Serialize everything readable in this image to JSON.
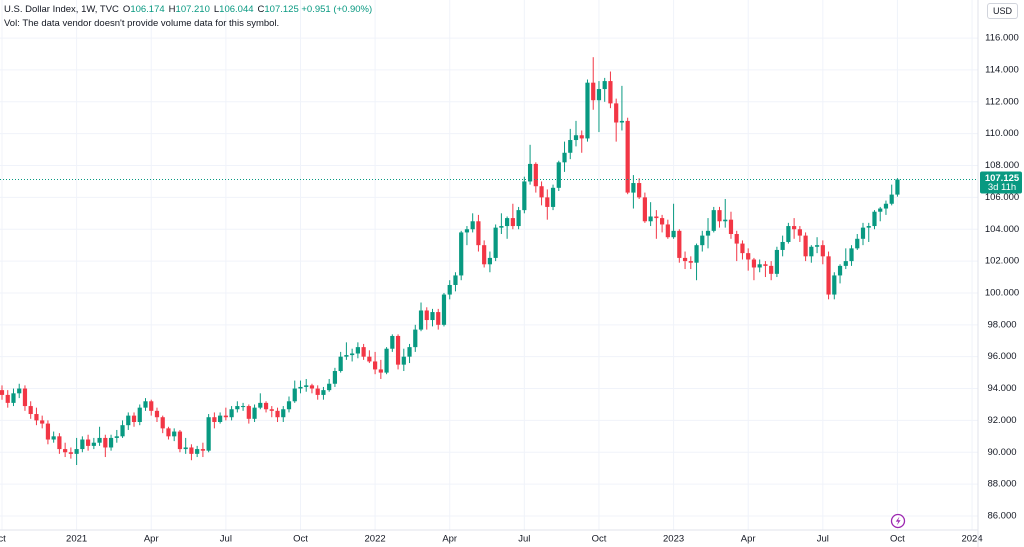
{
  "chart_data": {
    "type": "candlestick",
    "header": {
      "title": "U.S. Dollar Index, 1W, TVC",
      "fields": [
        {
          "key": "O",
          "label": "106.174"
        },
        {
          "key": "H",
          "label": "107.210"
        },
        {
          "key": "L",
          "label": "106.044"
        },
        {
          "key": "C",
          "label": "107.125"
        }
      ],
      "change": "+0.951 (+0.90%)",
      "volume_note": "Vol: The data vendor doesn't provide volume data for this symbol."
    },
    "currency": "USD",
    "countdown": "3d 11h",
    "up_color": "#089981",
    "down_color": "#f23645",
    "grid": true,
    "ylim": [
      85.12,
      118.39
    ],
    "yticks": [
      {
        "value": 86,
        "label": "86.000"
      },
      {
        "value": 88,
        "label": "88.000"
      },
      {
        "value": 90,
        "label": "90.000"
      },
      {
        "value": 92,
        "label": "92.000"
      },
      {
        "value": 94,
        "label": "94.000"
      },
      {
        "value": 96,
        "label": "96.000"
      },
      {
        "value": 98,
        "label": "98.000"
      },
      {
        "value": 100,
        "label": "100.000"
      },
      {
        "value": 102,
        "label": "102.000"
      },
      {
        "value": 104,
        "label": "104.000"
      },
      {
        "value": 106,
        "label": "106.000"
      },
      {
        "value": 108,
        "label": "108.000"
      },
      {
        "value": 110,
        "label": "110.000"
      },
      {
        "value": 112,
        "label": "112.000"
      },
      {
        "value": 114,
        "label": "114.000"
      },
      {
        "value": 116,
        "label": "116.000"
      }
    ],
    "categories": [
      "ct",
      null,
      null,
      null,
      null,
      null,
      null,
      null,
      null,
      null,
      null,
      null,
      null,
      "2021",
      null,
      null,
      null,
      null,
      null,
      null,
      null,
      null,
      null,
      null,
      null,
      null,
      "Apr",
      null,
      null,
      null,
      null,
      null,
      null,
      null,
      null,
      null,
      null,
      null,
      null,
      "Jul",
      null,
      null,
      null,
      null,
      null,
      null,
      null,
      null,
      null,
      null,
      null,
      null,
      "Oct",
      null,
      null,
      null,
      null,
      null,
      null,
      null,
      null,
      null,
      null,
      null,
      null,
      "2022",
      null,
      null,
      null,
      null,
      null,
      null,
      null,
      null,
      null,
      null,
      null,
      null,
      "Apr",
      null,
      null,
      null,
      null,
      null,
      null,
      null,
      null,
      null,
      null,
      null,
      null,
      "Jul",
      null,
      null,
      null,
      null,
      null,
      null,
      null,
      null,
      null,
      null,
      null,
      null,
      "Oct",
      null,
      null,
      null,
      null,
      null,
      null,
      null,
      null,
      null,
      null,
      null,
      null,
      "2023",
      null,
      null,
      null,
      null,
      null,
      null,
      null,
      null,
      null,
      null,
      null,
      null,
      "Apr",
      null,
      null,
      null,
      null,
      null,
      null,
      null,
      null,
      null,
      null,
      null,
      null,
      "Jul",
      null,
      null,
      null,
      null,
      null,
      null,
      null,
      null,
      null,
      null,
      null,
      null,
      "Oct",
      null,
      null,
      null,
      null,
      null,
      null,
      null,
      null,
      null,
      null,
      null,
      null,
      "2024"
    ],
    "ohlc": [
      [
        93.9,
        94.2,
        93.3,
        93.6
      ],
      [
        93.6,
        93.9,
        92.8,
        93.1
      ],
      [
        93.1,
        94.0,
        92.9,
        93.7
      ],
      [
        93.7,
        94.3,
        93.4,
        94.0
      ],
      [
        94.0,
        94.2,
        92.6,
        92.9
      ],
      [
        92.9,
        93.2,
        92.1,
        92.4
      ],
      [
        92.4,
        92.8,
        91.7,
        92.0
      ],
      [
        92.0,
        92.3,
        91.5,
        91.8
      ],
      [
        91.8,
        92.0,
        90.5,
        90.8
      ],
      [
        90.8,
        91.3,
        90.6,
        91.0
      ],
      [
        91.0,
        91.2,
        89.9,
        90.2
      ],
      [
        90.2,
        90.6,
        89.7,
        90.0
      ],
      [
        90.0,
        90.3,
        89.6,
        89.9
      ],
      [
        89.9,
        90.9,
        89.2,
        90.2
      ],
      [
        90.2,
        91.0,
        90.0,
        90.8
      ],
      [
        90.8,
        91.1,
        90.1,
        90.4
      ],
      [
        90.4,
        90.9,
        90.2,
        90.6
      ],
      [
        90.6,
        91.6,
        90.4,
        90.9
      ],
      [
        90.9,
        91.1,
        89.7,
        90.3
      ],
      [
        90.3,
        91.1,
        90.1,
        90.9
      ],
      [
        90.9,
        91.4,
        90.6,
        91.0
      ],
      [
        91.0,
        92.0,
        90.9,
        91.7
      ],
      [
        91.7,
        92.5,
        91.4,
        92.3
      ],
      [
        92.3,
        92.5,
        91.6,
        91.9
      ],
      [
        91.9,
        93.0,
        91.7,
        92.8
      ],
      [
        92.8,
        93.4,
        92.6,
        93.2
      ],
      [
        93.2,
        93.3,
        92.3,
        92.6
      ],
      [
        92.6,
        92.8,
        91.9,
        92.2
      ],
      [
        92.2,
        92.3,
        91.2,
        91.5
      ],
      [
        91.5,
        91.6,
        90.8,
        91.0
      ],
      [
        91.0,
        91.5,
        90.7,
        91.3
      ],
      [
        91.3,
        91.4,
        90.0,
        90.2
      ],
      [
        90.2,
        90.9,
        89.9,
        90.3
      ],
      [
        90.3,
        90.5,
        89.5,
        89.9
      ],
      [
        89.9,
        90.4,
        89.7,
        90.2
      ],
      [
        90.2,
        90.6,
        89.7,
        90.1
      ],
      [
        90.1,
        92.4,
        90.0,
        92.2
      ],
      [
        92.2,
        92.5,
        91.5,
        91.9
      ],
      [
        91.9,
        92.5,
        91.8,
        92.3
      ],
      [
        92.3,
        92.8,
        92.0,
        92.2
      ],
      [
        92.2,
        92.9,
        92.0,
        92.7
      ],
      [
        92.7,
        93.2,
        92.5,
        92.9
      ],
      [
        92.9,
        93.1,
        92.6,
        92.9
      ],
      [
        92.9,
        93.0,
        91.8,
        92.1
      ],
      [
        92.1,
        93.0,
        91.9,
        92.8
      ],
      [
        92.8,
        93.7,
        92.7,
        93.1
      ],
      [
        93.1,
        93.2,
        92.5,
        92.7
      ],
      [
        92.7,
        92.9,
        92.2,
        92.6
      ],
      [
        92.6,
        92.8,
        91.9,
        92.2
      ],
      [
        92.2,
        92.9,
        91.9,
        92.7
      ],
      [
        92.7,
        93.5,
        92.5,
        93.2
      ],
      [
        93.2,
        94.5,
        93.1,
        94.0
      ],
      [
        94.0,
        94.5,
        93.7,
        94.1
      ],
      [
        94.1,
        94.6,
        93.8,
        94.2
      ],
      [
        94.2,
        94.3,
        93.7,
        94.0
      ],
      [
        94.0,
        94.2,
        93.3,
        93.6
      ],
      [
        93.6,
        94.1,
        93.3,
        93.9
      ],
      [
        93.9,
        94.6,
        93.8,
        94.3
      ],
      [
        94.3,
        95.3,
        94.1,
        95.1
      ],
      [
        95.1,
        96.3,
        95.0,
        96.0
      ],
      [
        96.0,
        96.9,
        95.8,
        96.1
      ],
      [
        96.1,
        96.5,
        95.7,
        96.2
      ],
      [
        96.2,
        96.9,
        95.9,
        96.6
      ],
      [
        96.6,
        96.8,
        95.8,
        96.0
      ],
      [
        96.0,
        96.4,
        95.6,
        95.7
      ],
      [
        95.7,
        96.3,
        94.9,
        95.2
      ],
      [
        95.2,
        95.8,
        94.6,
        95.0
      ],
      [
        95.0,
        96.6,
        94.9,
        96.5
      ],
      [
        96.5,
        97.4,
        96.3,
        97.3
      ],
      [
        97.3,
        97.4,
        95.2,
        95.5
      ],
      [
        95.5,
        96.5,
        95.1,
        96.0
      ],
      [
        96.0,
        96.8,
        95.6,
        96.6
      ],
      [
        96.6,
        98.0,
        96.3,
        97.7
      ],
      [
        97.7,
        99.4,
        97.6,
        98.9
      ],
      [
        98.9,
        99.1,
        97.7,
        98.3
      ],
      [
        98.3,
        99.0,
        97.9,
        98.8
      ],
      [
        98.8,
        99.0,
        97.7,
        98.0
      ],
      [
        98.0,
        100.0,
        97.9,
        99.9
      ],
      [
        99.9,
        100.8,
        99.6,
        100.5
      ],
      [
        100.5,
        101.3,
        100.1,
        101.1
      ],
      [
        101.1,
        103.9,
        100.8,
        103.8
      ],
      [
        103.8,
        104.2,
        103.0,
        104.0
      ],
      [
        104.0,
        105.0,
        103.8,
        104.5
      ],
      [
        104.5,
        104.9,
        102.6,
        103.0
      ],
      [
        103.0,
        103.3,
        101.6,
        101.8
      ],
      [
        101.8,
        102.6,
        101.3,
        102.2
      ],
      [
        102.2,
        104.3,
        102.0,
        104.1
      ],
      [
        104.1,
        105.0,
        103.7,
        104.2
      ],
      [
        104.2,
        104.8,
        103.4,
        104.7
      ],
      [
        104.7,
        105.6,
        104.0,
        104.2
      ],
      [
        104.2,
        105.4,
        104.0,
        105.2
      ],
      [
        105.2,
        107.3,
        105.0,
        107.0
      ],
      [
        107.0,
        109.3,
        106.8,
        108.1
      ],
      [
        108.1,
        108.2,
        106.3,
        106.7
      ],
      [
        106.7,
        107.0,
        105.5,
        106.0
      ],
      [
        106.0,
        106.5,
        104.6,
        105.4
      ],
      [
        105.4,
        106.8,
        105.2,
        106.6
      ],
      [
        106.6,
        108.3,
        106.4,
        108.2
      ],
      [
        108.2,
        109.5,
        107.6,
        108.8
      ],
      [
        108.8,
        110.3,
        108.4,
        109.6
      ],
      [
        109.6,
        110.8,
        109.2,
        109.9
      ],
      [
        109.9,
        110.2,
        108.8,
        109.7
      ],
      [
        109.7,
        113.4,
        109.5,
        113.2
      ],
      [
        113.2,
        114.8,
        111.5,
        112.1
      ],
      [
        112.1,
        113.3,
        110.1,
        112.8
      ],
      [
        112.8,
        113.5,
        112.0,
        113.3
      ],
      [
        113.3,
        113.9,
        111.6,
        111.9
      ],
      [
        111.9,
        112.2,
        109.5,
        110.7
      ],
      [
        110.7,
        113.0,
        110.2,
        110.8
      ],
      [
        110.8,
        111.0,
        106.2,
        106.3
      ],
      [
        106.3,
        107.4,
        105.3,
        106.9
      ],
      [
        106.9,
        107.2,
        105.9,
        106.0
      ],
      [
        106.0,
        106.3,
        104.4,
        104.5
      ],
      [
        104.5,
        105.7,
        104.2,
        104.8
      ],
      [
        104.8,
        105.2,
        103.4,
        104.7
      ],
      [
        104.7,
        104.9,
        103.8,
        104.3
      ],
      [
        104.3,
        104.6,
        103.4,
        103.5
      ],
      [
        103.5,
        105.6,
        103.4,
        103.9
      ],
      [
        103.9,
        104.0,
        101.9,
        102.2
      ],
      [
        102.2,
        102.6,
        101.5,
        102.0
      ],
      [
        102.0,
        102.3,
        101.5,
        101.9
      ],
      [
        101.9,
        103.1,
        100.8,
        103.0
      ],
      [
        103.0,
        103.9,
        102.6,
        103.6
      ],
      [
        103.6,
        104.7,
        102.8,
        103.9
      ],
      [
        103.9,
        105.4,
        103.8,
        105.2
      ],
      [
        105.2,
        105.4,
        104.1,
        104.5
      ],
      [
        104.5,
        105.9,
        104.1,
        104.6
      ],
      [
        104.6,
        105.1,
        103.4,
        103.7
      ],
      [
        103.7,
        103.9,
        102.0,
        103.1
      ],
      [
        103.1,
        103.3,
        102.1,
        102.5
      ],
      [
        102.5,
        102.8,
        101.4,
        102.1
      ],
      [
        102.1,
        102.2,
        100.8,
        101.6
      ],
      [
        101.6,
        102.1,
        101.3,
        101.8
      ],
      [
        101.8,
        102.0,
        101.0,
        101.7
      ],
      [
        101.7,
        102.0,
        100.8,
        101.2
      ],
      [
        101.2,
        102.9,
        101.0,
        102.7
      ],
      [
        102.7,
        103.6,
        102.3,
        103.2
      ],
      [
        103.2,
        104.4,
        103.1,
        104.2
      ],
      [
        104.2,
        104.7,
        103.4,
        104.0
      ],
      [
        104.0,
        104.2,
        103.2,
        103.6
      ],
      [
        103.6,
        103.8,
        102.0,
        102.3
      ],
      [
        102.3,
        103.0,
        101.9,
        102.9
      ],
      [
        102.9,
        103.5,
        102.5,
        103.0
      ],
      [
        103.0,
        103.3,
        101.8,
        102.3
      ],
      [
        102.3,
        102.6,
        99.6,
        99.9
      ],
      [
        99.9,
        101.3,
        99.6,
        101.1
      ],
      [
        101.1,
        101.8,
        100.6,
        101.7
      ],
      [
        101.7,
        102.8,
        101.5,
        102.0
      ],
      [
        102.0,
        103.0,
        101.7,
        102.8
      ],
      [
        102.8,
        103.7,
        102.7,
        103.4
      ],
      [
        103.4,
        104.4,
        103.0,
        104.1
      ],
      [
        104.1,
        104.4,
        103.2,
        104.2
      ],
      [
        104.2,
        105.2,
        104.0,
        105.1
      ],
      [
        105.1,
        105.4,
        104.5,
        105.3
      ],
      [
        105.3,
        105.8,
        104.9,
        105.6
      ],
      [
        105.6,
        106.8,
        105.5,
        106.174
      ],
      [
        106.174,
        107.21,
        106.044,
        107.125
      ],
      null,
      null,
      null,
      null,
      null,
      null,
      null,
      null,
      null,
      null,
      null,
      null,
      null
    ]
  }
}
